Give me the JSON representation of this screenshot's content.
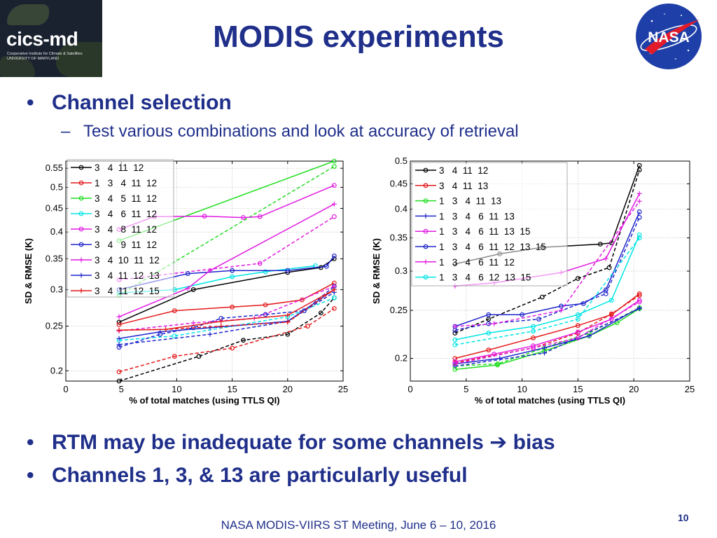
{
  "header": {
    "left_logo_name": "cics-md",
    "left_logo_sub": "Cooperative Institute for Climate & Satellites UNIVERSITY OF MARYLAND",
    "title": "MODIS experiments",
    "right_logo_name": "NASA"
  },
  "bullets": {
    "b1": "Channel selection",
    "b1_sub": "Test various combinations and look at accuracy of retrieval",
    "b2_a": "RTM may be inadequate for some channels ",
    "b2_b": " bias",
    "b3": "Channels 1, 3, & 13 are particularly useful"
  },
  "footer": {
    "text": "NASA MODIS-VIIRS ST Meeting, June 6 – 10, 2016",
    "page": "10"
  },
  "chart_data": [
    {
      "type": "line",
      "xlabel": "% of total matches (using TTLS QI)",
      "ylabel": "SD & RMSE (K)",
      "xlim": [
        0,
        25
      ],
      "ylim": [
        0.19,
        0.57
      ],
      "log_y": true,
      "xticks": [
        0,
        5,
        10,
        15,
        20,
        25
      ],
      "yticks": [
        0.2,
        0.25,
        0.3,
        0.35,
        0.4,
        0.45,
        0.5,
        0.55
      ],
      "grid": true,
      "legend_position": "top-left",
      "series": [
        {
          "name": "3   4  11  12",
          "color": "#000000",
          "marker": "o",
          "sd": [
            [
              4.8,
              0.255
            ],
            [
              11.5,
              0.3
            ],
            [
              20,
              0.327
            ],
            [
              23,
              0.335
            ],
            [
              24.2,
              0.35
            ]
          ],
          "rmse": [
            [
              4.8,
              0.19
            ],
            [
              12,
              0.215
            ],
            [
              16,
              0.233
            ],
            [
              20,
              0.24
            ],
            [
              23,
              0.267
            ],
            [
              24.2,
              0.288
            ]
          ]
        },
        {
          "name": "1   3   4  11  12",
          "color": "#e41a1c",
          "marker": "o",
          "sd": [
            [
              4.8,
              0.252
            ],
            [
              9.8,
              0.27
            ],
            [
              15,
              0.275
            ],
            [
              18,
              0.278
            ],
            [
              21.3,
              0.285
            ],
            [
              24.2,
              0.31
            ]
          ],
          "rmse": [
            [
              4.8,
              0.199
            ],
            [
              9.8,
              0.215
            ],
            [
              15,
              0.224
            ],
            [
              21.8,
              0.25
            ],
            [
              24.2,
              0.273
            ]
          ]
        },
        {
          "name": "3   4   5  11  12",
          "color": "#22dd22",
          "marker": "o",
          "sd": [
            [
              4.8,
              0.383
            ],
            [
              24.2,
              0.57
            ]
          ],
          "rmse": [
            [
              4.8,
              0.292
            ],
            [
              24.2,
              0.555
            ]
          ]
        },
        {
          "name": "3   4   6  11  12",
          "color": "#00e5e5",
          "marker": "o",
          "sd": [
            [
              4.8,
              0.295
            ],
            [
              9.8,
              0.3
            ],
            [
              15,
              0.32
            ],
            [
              18,
              0.328
            ],
            [
              22.5,
              0.338
            ]
          ],
          "rmse": [
            [
              4.8,
              0.233
            ],
            [
              9.8,
              0.238
            ],
            [
              20,
              0.262
            ],
            [
              24.2,
              0.288
            ]
          ]
        },
        {
          "name": "3   4   8  11  12",
          "color": "#e21ce2",
          "marker": "o",
          "sd": [
            [
              4.8,
              0.405
            ],
            [
              8,
              0.432
            ],
            [
              12.5,
              0.433
            ],
            [
              16,
              0.43
            ],
            [
              17.5,
              0.432
            ],
            [
              24.2,
              0.505
            ]
          ],
          "rmse": [
            [
              4.8,
              0.315
            ],
            [
              17.5,
              0.342
            ],
            [
              24.2,
              0.432
            ]
          ]
        },
        {
          "name": "3   4   9  11  12",
          "color": "#2026cc",
          "marker": "o",
          "sd": [
            [
              4.8,
              0.3
            ],
            [
              11,
              0.325
            ],
            [
              15,
              0.33
            ],
            [
              20,
              0.33
            ],
            [
              23.5,
              0.337
            ],
            [
              24.2,
              0.355
            ]
          ],
          "rmse": [
            [
              4.8,
              0.225
            ],
            [
              8.5,
              0.24
            ],
            [
              11.5,
              0.248
            ],
            [
              14,
              0.26
            ],
            [
              18,
              0.265
            ],
            [
              21.5,
              0.27
            ],
            [
              24.2,
              0.305
            ]
          ]
        },
        {
          "name": "3   4  10  11  12",
          "color": "#e21ce2",
          "marker": "+",
          "sd": [
            [
              4.8,
              0.262
            ],
            [
              11,
              0.302
            ],
            [
              13,
              0.33
            ],
            [
              24.2,
              0.46
            ]
          ],
          "rmse": [
            [
              4.8,
              0.244
            ],
            [
              11.5,
              0.254
            ],
            [
              17,
              0.26
            ],
            [
              24.2,
              0.305
            ]
          ]
        },
        {
          "name": "3   4  11  12  13",
          "color": "#2026cc",
          "marker": "+",
          "sd": [
            [
              4.8,
              0.235
            ],
            [
              8.5,
              0.243
            ],
            [
              13,
              0.248
            ],
            [
              20,
              0.256
            ],
            [
              24.2,
              0.3
            ]
          ],
          "rmse": [
            [
              4.8,
              0.228
            ],
            [
              13,
              0.24
            ],
            [
              20,
              0.256
            ],
            [
              24.2,
              0.296
            ]
          ]
        },
        {
          "name": "3   4  11  12  15",
          "color": "#e41a1c",
          "marker": "+",
          "sd": [
            [
              4.8,
              0.245
            ],
            [
              9,
              0.246
            ],
            [
              14,
              0.256
            ],
            [
              20,
              0.264
            ],
            [
              24.2,
              0.3
            ]
          ],
          "rmse": [
            [
              4.8,
              0.245
            ],
            [
              9,
              0.246
            ],
            [
              14,
              0.25
            ],
            [
              20,
              0.255
            ],
            [
              24.2,
              0.3
            ]
          ]
        }
      ]
    },
    {
      "type": "line",
      "xlabel": "% of total matches (using TTLS QI)",
      "ylabel": "SD & RMSE (K)",
      "xlim": [
        0,
        25
      ],
      "ylim": [
        0.18,
        0.5
      ],
      "log_y": true,
      "xticks": [
        0,
        5,
        10,
        15,
        20,
        25
      ],
      "yticks": [
        0.2,
        0.25,
        0.3,
        0.35,
        0.4,
        0.45,
        0.5
      ],
      "grid": true,
      "legend_position": "top-left",
      "series": [
        {
          "name": "3   4  11  12",
          "color": "#000000",
          "marker": "o",
          "sd": [
            [
              4,
              0.31
            ],
            [
              8,
              0.325
            ],
            [
              11.8,
              0.335
            ],
            [
              17,
              0.34
            ],
            [
              18,
              0.342
            ],
            [
              20.5,
              0.49
            ]
          ],
          "rmse": [
            [
              4,
              0.225
            ],
            [
              7,
              0.24
            ],
            [
              11.8,
              0.266
            ],
            [
              15,
              0.29
            ],
            [
              17.8,
              0.305
            ],
            [
              20.5,
              0.48
            ]
          ]
        },
        {
          "name": "3   4  11  13",
          "color": "#e41a1c",
          "marker": "o",
          "sd": [
            [
              4,
              0.2
            ],
            [
              7,
              0.208
            ],
            [
              11,
              0.22
            ],
            [
              15,
              0.233
            ],
            [
              18,
              0.245
            ],
            [
              20.5,
              0.27
            ]
          ],
          "rmse": [
            [
              4,
              0.196
            ],
            [
              11,
              0.21
            ],
            [
              15,
              0.225
            ],
            [
              18,
              0.246
            ],
            [
              20.5,
              0.268
            ]
          ]
        },
        {
          "name": "1   3   4  11  13",
          "color": "#22dd22",
          "marker": "o",
          "sd": [
            [
              4,
              0.19
            ],
            [
              7.8,
              0.194
            ],
            [
              12,
              0.207
            ],
            [
              16,
              0.222
            ],
            [
              18.5,
              0.236
            ],
            [
              20.5,
              0.252
            ]
          ],
          "rmse": [
            [
              4,
              0.193
            ],
            [
              7.8,
              0.195
            ],
            [
              12,
              0.21
            ],
            [
              16,
              0.225
            ],
            [
              20.5,
              0.253
            ]
          ]
        },
        {
          "name": "1   3   4   6  11  13",
          "color": "#2026cc",
          "marker": "+",
          "sd": [
            [
              4,
              0.195
            ],
            [
              8,
              0.2
            ],
            [
              12,
              0.21
            ],
            [
              16,
              0.222
            ],
            [
              20.5,
              0.253
            ]
          ],
          "rmse": [
            [
              4,
              0.193
            ],
            [
              12,
              0.205
            ],
            [
              20.5,
              0.252
            ]
          ]
        },
        {
          "name": "1   3   4   6  11  13  15",
          "color": "#e21ce2",
          "marker": "o",
          "sd": [
            [
              4,
              0.197
            ],
            [
              7.5,
              0.204
            ],
            [
              11,
              0.212
            ],
            [
              15,
              0.226
            ],
            [
              18,
              0.24
            ],
            [
              20.5,
              0.262
            ]
          ],
          "rmse": [
            [
              4,
              0.195
            ],
            [
              11,
              0.21
            ],
            [
              15,
              0.22
            ],
            [
              20.5,
              0.26
            ]
          ]
        },
        {
          "name": "1   3   4   6  11  12  13  15",
          "color": "#2026cc",
          "marker": "o",
          "sd": [
            [
              4,
              0.232
            ],
            [
              7,
              0.245
            ],
            [
              10,
              0.245
            ],
            [
              13.5,
              0.255
            ],
            [
              15.5,
              0.258
            ],
            [
              17.5,
              0.275
            ],
            [
              20.5,
              0.395
            ]
          ],
          "rmse": [
            [
              4,
              0.228
            ],
            [
              7,
              0.235
            ],
            [
              11.5,
              0.24
            ],
            [
              17.5,
              0.27
            ],
            [
              20.5,
              0.385
            ]
          ]
        },
        {
          "name": "1   3   4   6  11  12",
          "color": "#e21ce2",
          "marker": "+",
          "sd": [
            [
              4,
              0.28
            ],
            [
              7.5,
              0.284
            ],
            [
              13.5,
              0.298
            ],
            [
              17.5,
              0.318
            ],
            [
              20.5,
              0.43
            ]
          ],
          "rmse": [
            [
              4,
              0.232
            ],
            [
              7.5,
              0.235
            ],
            [
              13.5,
              0.25
            ],
            [
              20.5,
              0.415
            ]
          ]
        },
        {
          "name": "1   3   4   6  12  13  15",
          "color": "#00e5e5",
          "marker": "o",
          "sd": [
            [
              4,
              0.218
            ],
            [
              7,
              0.225
            ],
            [
              11,
              0.232
            ],
            [
              15,
              0.245
            ],
            [
              18,
              0.262
            ],
            [
              20.5,
              0.355
            ]
          ],
          "rmse": [
            [
              4,
              0.213
            ],
            [
              11,
              0.227
            ],
            [
              15,
              0.24
            ],
            [
              20.5,
              0.35
            ]
          ]
        }
      ]
    }
  ]
}
